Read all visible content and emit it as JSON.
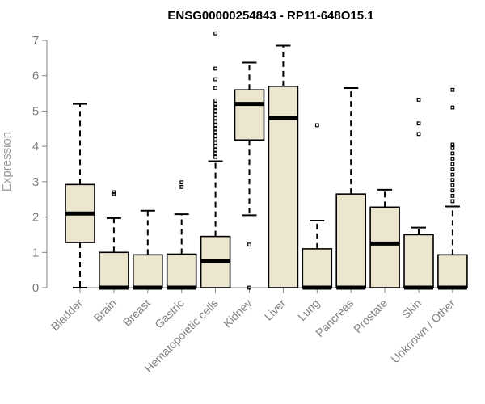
{
  "chart_data": {
    "type": "boxplot",
    "title": "ENSG00000254843 - RP11-648O15.1",
    "ylabel": "Expression",
    "xlabel": "",
    "ylim": [
      0,
      7
    ],
    "yticks": [
      0,
      1,
      2,
      3,
      4,
      5,
      6,
      7
    ],
    "box_fill": "#ede6cf",
    "categories": [
      "Bladder",
      "Brain",
      "Breast",
      "Gastric",
      "Hematopoietic cells",
      "Kidney",
      "Liver",
      "Lung",
      "Pancreas",
      "Prostate",
      "Skin",
      "Unknown / Other"
    ],
    "boxes": [
      {
        "name": "Bladder",
        "whisker_low": 0,
        "q1": 1.28,
        "median": 2.1,
        "q3": 2.92,
        "whisker_high": 5.2,
        "outliers": []
      },
      {
        "name": "Brain",
        "whisker_low": 0,
        "q1": 0,
        "median": 0,
        "q3": 1.0,
        "whisker_high": 1.97,
        "outliers": [
          2.65,
          2.7
        ]
      },
      {
        "name": "Breast",
        "whisker_low": 0,
        "q1": 0,
        "median": 0,
        "q3": 0.93,
        "whisker_high": 2.18,
        "outliers": []
      },
      {
        "name": "Gastric",
        "whisker_low": 0,
        "q1": 0,
        "median": 0,
        "q3": 0.95,
        "whisker_high": 2.08,
        "outliers": [
          2.85,
          2.98
        ]
      },
      {
        "name": "Hematopoietic cells",
        "whisker_low": 0,
        "q1": 0,
        "median": 0.75,
        "q3": 1.45,
        "whisker_high": 3.58,
        "outliers": [
          3.7,
          3.8,
          3.9,
          4.0,
          4.1,
          4.2,
          4.3,
          4.4,
          4.5,
          4.6,
          4.7,
          4.8,
          4.9,
          5.0,
          5.1,
          5.2,
          5.3,
          5.65,
          5.9,
          6.2,
          7.2
        ]
      },
      {
        "name": "Kidney",
        "whisker_low": 2.05,
        "q1": 4.18,
        "median": 5.2,
        "q3": 5.6,
        "whisker_high": 6.37,
        "outliers": [
          0,
          1.22
        ]
      },
      {
        "name": "Liver",
        "whisker_low": 0,
        "q1": 0,
        "median": 4.8,
        "q3": 5.7,
        "whisker_high": 6.85,
        "outliers": []
      },
      {
        "name": "Lung",
        "whisker_low": 0,
        "q1": 0,
        "median": 0,
        "q3": 1.1,
        "whisker_high": 1.9,
        "outliers": [
          4.6
        ]
      },
      {
        "name": "Pancreas",
        "whisker_low": 0,
        "q1": 0,
        "median": 0,
        "q3": 2.65,
        "whisker_high": 5.65,
        "outliers": []
      },
      {
        "name": "Prostate",
        "whisker_low": 0,
        "q1": 0,
        "median": 1.25,
        "q3": 2.28,
        "whisker_high": 2.77,
        "outliers": []
      },
      {
        "name": "Skin",
        "whisker_low": 0,
        "q1": 0,
        "median": 0,
        "q3": 1.5,
        "whisker_high": 1.7,
        "outliers": [
          4.35,
          4.65,
          5.32
        ]
      },
      {
        "name": "Unknown / Other",
        "whisker_low": 0,
        "q1": 0,
        "median": 0,
        "q3": 0.93,
        "whisker_high": 2.3,
        "outliers": [
          2.45,
          2.6,
          2.75,
          2.9,
          3.05,
          3.2,
          3.35,
          3.5,
          3.65,
          3.8,
          3.95,
          4.05,
          5.1,
          5.6
        ]
      }
    ]
  }
}
